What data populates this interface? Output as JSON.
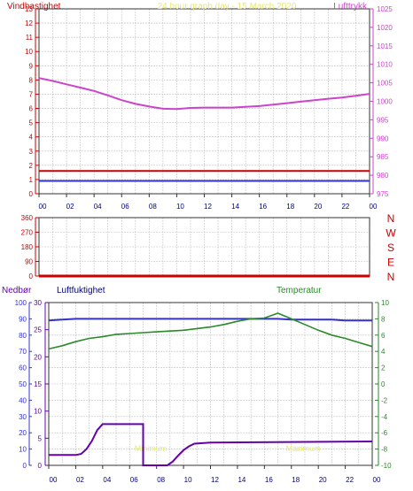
{
  "colors": {
    "wind": "#cc0000",
    "pressure": "#cc44cc",
    "title": "#e8e870",
    "rain": "#6600aa",
    "humidity": "#3333cc",
    "temperature": "#2a8a2a",
    "grid": "#c0c0c0"
  },
  "chart_data": [
    {
      "type": "line",
      "title": "24 hour graph day - 15 March 2020",
      "ylabel": "Vindhastighet",
      "y2label": "Lufttrykk",
      "x_ticks": [
        "00",
        "02",
        "04",
        "06",
        "08",
        "10",
        "12",
        "14",
        "16",
        "18",
        "20",
        "22",
        "00"
      ],
      "ylim": [
        0,
        13
      ],
      "y_ticks": [
        "0",
        "1",
        "2",
        "3",
        "4",
        "5",
        "6",
        "7",
        "8",
        "9",
        "10",
        "11",
        "12",
        "13"
      ],
      "y2lim": [
        975,
        1025
      ],
      "y2_ticks": [
        "975",
        "980",
        "985",
        "990",
        "995",
        "1000",
        "1005",
        "1010",
        "1015",
        "1020",
        "1025"
      ],
      "grid": true,
      "series": [
        {
          "name": "Lufttrykk",
          "axis": "right",
          "x": [
            0,
            1,
            2,
            3,
            4,
            5,
            6,
            7,
            8,
            9,
            10,
            11,
            12,
            13,
            14,
            15,
            16,
            17,
            18,
            19,
            20,
            21,
            22,
            23,
            24
          ],
          "values": [
            1006.3,
            1005.5,
            1004.6,
            1003.7,
            1002.8,
            1001.6,
            1000.3,
            999.3,
            998.6,
            998.0,
            997.9,
            998.2,
            998.3,
            998.3,
            998.3,
            998.5,
            998.7,
            999.1,
            999.5,
            999.9,
            1000.3,
            1000.7,
            1001.0,
            1001.5,
            1002.0
          ]
        },
        {
          "name": "Vindhastighet",
          "axis": "left",
          "x": [
            0,
            24
          ],
          "values": [
            0.9,
            0.9
          ]
        },
        {
          "name": "Vindkast",
          "axis": "left",
          "x": [
            0,
            24
          ],
          "values": [
            1.6,
            1.6
          ]
        }
      ]
    },
    {
      "type": "line",
      "ylim": [
        0,
        360
      ],
      "y_ticks": [
        "0",
        "90",
        "180",
        "270",
        "360"
      ],
      "y2_ticks": [
        "N",
        "E",
        "S",
        "W",
        "N"
      ],
      "x_ticks": [],
      "grid": true,
      "series": [
        {
          "name": "Vindretning",
          "x": [
            0,
            24
          ],
          "values": [
            0,
            0
          ]
        }
      ]
    },
    {
      "type": "line",
      "labels": {
        "rain": "Nedbør",
        "humidity": "Luftfuktighet",
        "temperature": "Temperatur"
      },
      "x_ticks": [
        "00",
        "02",
        "04",
        "06",
        "08",
        "10",
        "12",
        "14",
        "16",
        "18",
        "20",
        "22",
        "00"
      ],
      "y_ticks_rain": [
        "0",
        "10",
        "20",
        "30",
        "40",
        "50",
        "60",
        "70",
        "80",
        "90",
        "100"
      ],
      "y_ticks_mid": [
        "0",
        "5",
        "10",
        "15",
        "20",
        "25",
        "30"
      ],
      "mid_lim": [
        0,
        30
      ],
      "y_ticks_temp": [
        "-10",
        "-8",
        "-6",
        "-4",
        "-2",
        "0",
        "2",
        "4",
        "6",
        "8",
        "10"
      ],
      "temp_lim": [
        -10,
        10
      ],
      "ghost_labels": [
        "Minimum",
        "Maximum"
      ],
      "grid": true,
      "series": [
        {
          "name": "Luftfuktighet",
          "axis": "left",
          "x": [
            0,
            1,
            2,
            3,
            4,
            5,
            6,
            7,
            8,
            9,
            10,
            11,
            12,
            13,
            14,
            15,
            16,
            17,
            18,
            19,
            20,
            21,
            22,
            23,
            24
          ],
          "values": [
            89,
            89.5,
            90,
            90,
            90,
            90,
            90,
            90,
            90,
            90,
            90,
            90,
            90,
            90,
            90,
            90,
            90,
            90,
            89.5,
            89.5,
            89.5,
            89.5,
            89,
            89,
            89
          ]
        },
        {
          "name": "Temperatur",
          "axis": "right",
          "x": [
            0,
            1,
            2,
            3,
            4,
            5,
            6,
            7,
            8,
            9,
            10,
            11,
            12,
            13,
            14,
            15,
            16,
            17,
            18,
            19,
            20,
            21,
            22,
            23,
            24
          ],
          "values": [
            4.3,
            4.7,
            5.2,
            5.6,
            5.8,
            6.1,
            6.2,
            6.3,
            6.4,
            6.5,
            6.6,
            6.8,
            7.0,
            7.3,
            7.7,
            8.0,
            8.1,
            8.7,
            8.0,
            7.3,
            6.6,
            6.0,
            5.6,
            5.1,
            4.6
          ]
        },
        {
          "name": "Nedbør",
          "axis": "mid",
          "x": [
            0,
            2,
            2.4,
            2.8,
            3.2,
            3.6,
            4,
            5.5,
            5.5,
            7,
            7,
            8.8,
            9.2,
            9.6,
            10,
            10.4,
            10.8,
            11.4,
            12,
            24
          ],
          "values": [
            1.9,
            1.9,
            2.1,
            3.0,
            4.5,
            6.5,
            7.6,
            7.6,
            7.6,
            7.6,
            0,
            0,
            0.7,
            1.8,
            2.8,
            3.5,
            4.0,
            4.1,
            4.2,
            4.4
          ]
        }
      ]
    }
  ]
}
